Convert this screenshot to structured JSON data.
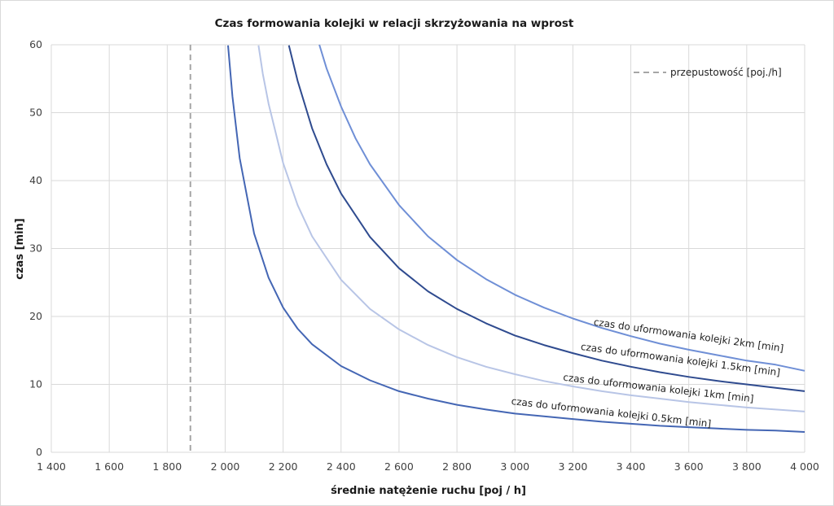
{
  "chart_data": {
    "type": "line",
    "title": "Czas formowania kolejki w relacji skrzyżowania na wprost",
    "xlabel": "średnie natężenie ruchu [poj / h]",
    "ylabel": "czas [min]",
    "xlim": [
      1400,
      4000
    ],
    "ylim": [
      0,
      60
    ],
    "x_ticks": [
      "1 400",
      "1 600",
      "1 800",
      "2 000",
      "2 200",
      "2 400",
      "2 600",
      "2 800",
      "3 000",
      "3 200",
      "3 400",
      "3 600",
      "3 800",
      "4 000"
    ],
    "x_tick_values": [
      1400,
      1600,
      1800,
      2000,
      2200,
      2400,
      2600,
      2800,
      3000,
      3200,
      3400,
      3600,
      3800,
      4000
    ],
    "y_ticks": [
      "0",
      "10",
      "20",
      "30",
      "40",
      "50",
      "60"
    ],
    "y_tick_values": [
      0,
      10,
      20,
      30,
      40,
      50,
      60
    ],
    "grid": true,
    "legend_position": "top-right",
    "capacity": {
      "name": "przepustowość [poj./h]",
      "x": 1880,
      "color": "#a6a6a6",
      "style": "dashed"
    },
    "series": [
      {
        "name": "czas do uformowania kolejki 0.5km [min]",
        "color": "#4466b4",
        "points": [
          [
            2010,
            59.9
          ],
          [
            2025,
            52.4
          ],
          [
            2050,
            43.3
          ],
          [
            2100,
            32.2
          ],
          [
            2150,
            25.7
          ],
          [
            2200,
            21.3
          ],
          [
            2250,
            18.2
          ],
          [
            2300,
            15.9
          ],
          [
            2400,
            12.7
          ],
          [
            2500,
            10.6
          ],
          [
            2600,
            9.0
          ],
          [
            2700,
            7.9
          ],
          [
            2800,
            7.0
          ],
          [
            2900,
            6.3
          ],
          [
            3000,
            5.7
          ],
          [
            3100,
            5.3
          ],
          [
            3200,
            4.9
          ],
          [
            3300,
            4.5
          ],
          [
            3400,
            4.2
          ],
          [
            3500,
            3.9
          ],
          [
            3600,
            3.7
          ],
          [
            3700,
            3.5
          ],
          [
            3800,
            3.3
          ],
          [
            3900,
            3.2
          ],
          [
            4000,
            3.0
          ]
        ]
      },
      {
        "name": "czas do uformowania kolejki 1km [min]",
        "color": "#b8c5e6",
        "points": [
          [
            2115,
            59.9
          ],
          [
            2130,
            55.7
          ],
          [
            2150,
            51.3
          ],
          [
            2200,
            42.6
          ],
          [
            2250,
            36.4
          ],
          [
            2300,
            31.8
          ],
          [
            2400,
            25.4
          ],
          [
            2500,
            21.1
          ],
          [
            2600,
            18.1
          ],
          [
            2700,
            15.8
          ],
          [
            2800,
            14.0
          ],
          [
            2900,
            12.6
          ],
          [
            3000,
            11.5
          ],
          [
            3100,
            10.5
          ],
          [
            3200,
            9.7
          ],
          [
            3300,
            9.0
          ],
          [
            3400,
            8.4
          ],
          [
            3500,
            7.9
          ],
          [
            3600,
            7.4
          ],
          [
            3700,
            7.0
          ],
          [
            3800,
            6.6
          ],
          [
            3900,
            6.3
          ],
          [
            4000,
            6.0
          ]
        ]
      },
      {
        "name": "czas do uformowania kolejki 1.5km [min]",
        "color": "#2f4b8f",
        "points": [
          [
            2220,
            59.9
          ],
          [
            2250,
            54.7
          ],
          [
            2300,
            47.7
          ],
          [
            2350,
            42.4
          ],
          [
            2400,
            38.1
          ],
          [
            2500,
            31.7
          ],
          [
            2600,
            27.1
          ],
          [
            2700,
            23.7
          ],
          [
            2800,
            21.1
          ],
          [
            2900,
            19.0
          ],
          [
            3000,
            17.2
          ],
          [
            3100,
            15.8
          ],
          [
            3200,
            14.6
          ],
          [
            3300,
            13.5
          ],
          [
            3400,
            12.6
          ],
          [
            3500,
            11.8
          ],
          [
            3600,
            11.1
          ],
          [
            3700,
            10.5
          ],
          [
            3800,
            10.0
          ],
          [
            3900,
            9.5
          ],
          [
            4000,
            9.0
          ]
        ]
      },
      {
        "name": "czas do uformowania kolejki 2km [min]",
        "color": "#6f8fd6",
        "points": [
          [
            2325,
            60.0
          ],
          [
            2350,
            56.5
          ],
          [
            2400,
            50.9
          ],
          [
            2450,
            46.2
          ],
          [
            2500,
            42.4
          ],
          [
            2600,
            36.4
          ],
          [
            2700,
            31.8
          ],
          [
            2800,
            28.3
          ],
          [
            2900,
            25.5
          ],
          [
            3000,
            23.2
          ],
          [
            3100,
            21.3
          ],
          [
            3200,
            19.7
          ],
          [
            3300,
            18.3
          ],
          [
            3400,
            17.1
          ],
          [
            3500,
            16.0
          ],
          [
            3600,
            15.1
          ],
          [
            3700,
            14.3
          ],
          [
            3800,
            13.5
          ],
          [
            3900,
            12.9
          ],
          [
            4000,
            12.0
          ]
        ]
      }
    ]
  }
}
